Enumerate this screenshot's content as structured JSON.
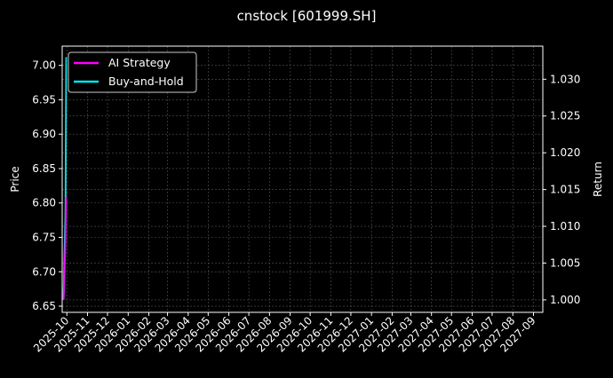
{
  "chart_data": {
    "type": "line",
    "title": "cnstock [601999.SH]",
    "ylabel": "Price",
    "y2label": "Return",
    "xlim": [
      "2025-09-24",
      "2027-09-15"
    ],
    "ylim": [
      6.641,
      7.028
    ],
    "y2lim": [
      0.9983,
      1.0345
    ],
    "x_ticks": [
      "2025-10",
      "2025-11",
      "2025-12",
      "2026-01",
      "2026-02",
      "2026-03",
      "2026-04",
      "2026-05",
      "2026-06",
      "2026-07",
      "2026-08",
      "2026-09",
      "2026-10",
      "2026-11",
      "2026-12",
      "2027-01",
      "2027-02",
      "2027-03",
      "2027-04",
      "2027-05",
      "2027-06",
      "2027-07",
      "2027-08",
      "2027-09"
    ],
    "y_ticks": [
      "6.65",
      "6.70",
      "6.75",
      "6.80",
      "6.85",
      "6.90",
      "6.95",
      "7.00"
    ],
    "y2_ticks": [
      "1.000",
      "1.005",
      "1.010",
      "1.015",
      "1.020",
      "1.025",
      "1.030"
    ],
    "grid": true,
    "legend_placement": "upper-left",
    "x": [
      "2025-09-26",
      "2025-09-29",
      "2025-09-30"
    ],
    "price": {
      "axis": "left",
      "color": "#d62728",
      "values": [
        6.66,
        6.8,
        7.0
      ]
    },
    "series": [
      {
        "name": "AI Strategy",
        "axis": "right",
        "color": "#ff00ff",
        "values": [
          1.0,
          1.008,
          1.014
        ]
      },
      {
        "name": "Buy-and-Hold",
        "axis": "right",
        "color": "#00e5ee",
        "values": [
          1.0,
          1.012,
          1.033
        ]
      }
    ]
  }
}
